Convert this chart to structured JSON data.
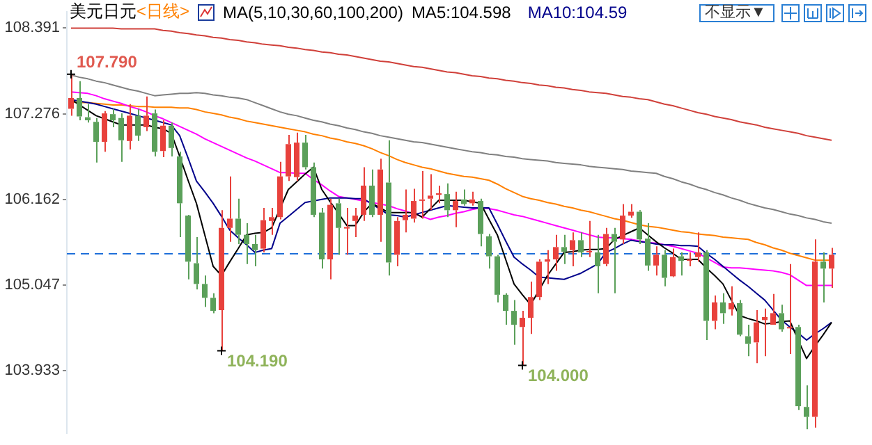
{
  "chart_data": {
    "type": "candlestick",
    "title": "美元日元",
    "subtitle": "<日线>",
    "annotations": [
      "MA(5,10,30,60,100,200)",
      "MA5:104.598",
      "MA10:104.59",
      "不显示▼",
      "107.790",
      "104.190",
      "104.000"
    ],
    "categories": [
      null,
      null,
      null,
      null,
      null,
      null,
      null,
      null,
      null,
      null,
      null,
      null,
      null,
      null,
      null,
      null,
      null,
      null,
      null,
      null,
      null,
      null,
      null,
      null,
      null,
      null,
      null,
      null,
      null,
      null,
      null,
      null,
      null,
      null,
      null,
      null,
      null,
      null,
      null,
      null,
      null,
      null,
      null,
      null,
      null,
      null,
      null,
      null,
      null,
      null,
      null,
      null,
      null,
      null,
      null,
      null,
      null,
      null,
      null,
      null,
      null,
      null,
      null,
      null,
      null,
      null,
      null,
      null,
      null,
      null,
      null,
      null,
      null,
      null,
      null,
      null,
      null,
      null,
      null,
      null,
      null,
      null,
      null,
      null,
      null,
      null,
      null,
      null,
      null,
      null,
      null,
      null
    ],
    "ohlc": [
      [
        107.34,
        107.79,
        107.25,
        107.48
      ],
      [
        107.48,
        107.7,
        107.19,
        107.24
      ],
      [
        107.23,
        107.4,
        107.16,
        107.19
      ],
      [
        107.17,
        107.22,
        106.64,
        106.91
      ],
      [
        106.91,
        107.31,
        106.78,
        107.28
      ],
      [
        107.27,
        107.34,
        107.1,
        107.19
      ],
      [
        107.22,
        107.28,
        106.65,
        106.93
      ],
      [
        106.92,
        107.4,
        106.81,
        107.25
      ],
      [
        107.25,
        107.34,
        106.92,
        106.99
      ],
      [
        107.1,
        107.5,
        107.05,
        107.25
      ],
      [
        107.28,
        107.33,
        106.72,
        106.78
      ],
      [
        106.79,
        107.19,
        106.71,
        107.12
      ],
      [
        107.12,
        107.16,
        106.72,
        106.83
      ],
      [
        106.72,
        106.78,
        105.67,
        106.11
      ],
      [
        105.95,
        105.96,
        105.12,
        105.35
      ],
      [
        105.33,
        105.67,
        104.99,
        105.06
      ],
      [
        105.06,
        105.17,
        104.76,
        104.88
      ],
      [
        104.88,
        104.94,
        104.68,
        104.71
      ],
      [
        104.72,
        106.02,
        104.19,
        105.79
      ],
      [
        105.79,
        106.46,
        105.61,
        105.91
      ],
      [
        105.91,
        106.17,
        105.58,
        105.7
      ],
      [
        105.7,
        105.85,
        105.32,
        105.58
      ],
      [
        105.58,
        105.7,
        105.29,
        105.5
      ],
      [
        105.52,
        106.05,
        105.47,
        105.89
      ],
      [
        105.88,
        106.05,
        105.7,
        105.93
      ],
      [
        105.93,
        106.65,
        105.9,
        106.46
      ],
      [
        106.46,
        107.0,
        106.4,
        106.88
      ],
      [
        106.45,
        107.03,
        106.4,
        106.9
      ],
      [
        106.9,
        107.0,
        106.55,
        106.58
      ],
      [
        106.58,
        106.64,
        105.93,
        105.96
      ],
      [
        105.99,
        106.05,
        105.26,
        105.38
      ],
      [
        105.38,
        106.17,
        105.12,
        106.09
      ],
      [
        106.11,
        106.17,
        105.44,
        105.79
      ],
      [
        105.79,
        106.05,
        105.44,
        105.8
      ],
      [
        105.88,
        106.05,
        105.67,
        105.95
      ],
      [
        105.96,
        106.58,
        105.88,
        106.34
      ],
      [
        106.34,
        106.55,
        105.93,
        105.96
      ],
      [
        105.96,
        106.69,
        105.61,
        106.55
      ],
      [
        106.38,
        106.93,
        105.17,
        105.34
      ],
      [
        105.44,
        105.93,
        105.29,
        105.88
      ],
      [
        105.89,
        106.29,
        105.73,
        105.96
      ],
      [
        105.91,
        106.3,
        105.86,
        106.14
      ],
      [
        106.15,
        106.53,
        105.91,
        106.16
      ],
      [
        106.17,
        106.49,
        106.02,
        106.21
      ],
      [
        106.22,
        106.34,
        106.11,
        106.24
      ],
      [
        106.23,
        106.37,
        105.93,
        106.02
      ],
      [
        106.02,
        106.26,
        105.8,
        106.14
      ],
      [
        106.16,
        106.29,
        106.08,
        106.1
      ],
      [
        106.11,
        106.26,
        106.08,
        106.16
      ],
      [
        106.14,
        106.17,
        105.55,
        105.71
      ],
      [
        105.68,
        105.71,
        105.26,
        105.42
      ],
      [
        105.42,
        105.44,
        104.82,
        104.92
      ],
      [
        104.92,
        104.94,
        104.53,
        104.71
      ],
      [
        104.71,
        104.85,
        104.27,
        104.53
      ],
      [
        104.5,
        104.71,
        104.0,
        104.62
      ],
      [
        104.62,
        105.09,
        104.41,
        104.89
      ],
      [
        104.89,
        105.38,
        104.85,
        105.35
      ],
      [
        105.35,
        105.5,
        105.06,
        105.38
      ],
      [
        105.38,
        105.7,
        105.23,
        105.54
      ],
      [
        105.54,
        105.7,
        105.32,
        105.48
      ],
      [
        105.5,
        105.73,
        105.29,
        105.63
      ],
      [
        105.63,
        105.73,
        105.41,
        105.47
      ],
      [
        105.48,
        105.88,
        105.41,
        105.49
      ],
      [
        105.47,
        105.7,
        104.94,
        105.29
      ],
      [
        105.32,
        105.79,
        105.29,
        105.71
      ],
      [
        105.71,
        105.79,
        104.94,
        105.61
      ],
      [
        105.64,
        106.1,
        105.58,
        105.95
      ],
      [
        105.95,
        106.1,
        105.92,
        106.0
      ],
      [
        106.0,
        106.02,
        105.58,
        105.64
      ],
      [
        105.65,
        105.85,
        105.23,
        105.3
      ],
      [
        105.3,
        105.55,
        105.17,
        105.44
      ],
      [
        105.44,
        105.5,
        105.03,
        105.14
      ],
      [
        105.16,
        105.52,
        105.15,
        105.41
      ],
      [
        105.42,
        105.47,
        105.17,
        105.36
      ],
      [
        105.37,
        105.47,
        105.29,
        105.38
      ],
      [
        105.41,
        105.73,
        105.35,
        105.47
      ],
      [
        105.47,
        105.5,
        104.33,
        104.58
      ],
      [
        104.58,
        104.91,
        104.47,
        104.82
      ],
      [
        104.82,
        104.94,
        104.54,
        104.68
      ],
      [
        104.73,
        105.03,
        104.65,
        104.81
      ],
      [
        104.81,
        104.85,
        104.38,
        104.4
      ],
      [
        104.38,
        104.53,
        104.12,
        104.28
      ],
      [
        104.3,
        104.72,
        104.03,
        104.56
      ],
      [
        104.59,
        104.74,
        104.12,
        104.63
      ],
      [
        104.53,
        104.93,
        104.53,
        104.68
      ],
      [
        104.68,
        104.79,
        104.44,
        104.47
      ],
      [
        104.49,
        105.32,
        104.15,
        104.5
      ],
      [
        104.5,
        104.53,
        103.42,
        103.47
      ],
      [
        103.46,
        103.74,
        103.17,
        103.33
      ],
      [
        103.33,
        105.64,
        103.19,
        105.35
      ],
      [
        105.35,
        105.47,
        104.82,
        105.26
      ],
      [
        105.26,
        105.53,
        105.01,
        105.44
      ]
    ],
    "colors": [
      "#e8413c",
      "#5ba05a",
      "#5ba05a",
      "#5ba05a",
      "#e8413c",
      "#5ba05a",
      "#5ba05a",
      "#e8413c",
      "#5ba05a",
      "#e8413c",
      "#5ba05a",
      "#e8413c",
      "#5ba05a",
      "#5ba05a",
      "#5ba05a",
      "#5ba05a",
      "#5ba05a",
      "#5ba05a",
      "#e8413c",
      "#e8413c",
      "#5ba05a",
      "#5ba05a",
      "#5ba05a",
      "#e8413c",
      "#e8413c",
      "#e8413c",
      "#e8413c",
      "#e8413c",
      "#5ba05a",
      "#5ba05a",
      "#5ba05a",
      "#e8413c",
      "#5ba05a",
      "#e8413c",
      "#e8413c",
      "#e8413c",
      "#5ba05a",
      "#e8413c",
      "#5ba05a",
      "#e8413c",
      "#e8413c",
      "#e8413c",
      "#e8413c",
      "#e8413c",
      "#e8413c",
      "#5ba05a",
      "#e8413c",
      "#5ba05a",
      "#e8413c",
      "#5ba05a",
      "#5ba05a",
      "#5ba05a",
      "#5ba05a",
      "#5ba05a",
      "#e8413c",
      "#e8413c",
      "#e8413c",
      "#e8413c",
      "#e8413c",
      "#5ba05a",
      "#e8413c",
      "#5ba05a",
      "#e8413c",
      "#5ba05a",
      "#e8413c",
      "#5ba05a",
      "#e8413c",
      "#e8413c",
      "#5ba05a",
      "#5ba05a",
      "#e8413c",
      "#5ba05a",
      "#e8413c",
      "#5ba05a",
      "#e8413c",
      "#e8413c",
      "#5ba05a",
      "#e8413c",
      "#5ba05a",
      "#e8413c",
      "#5ba05a",
      "#5ba05a",
      "#e8413c",
      "#e8413c",
      "#e8413c",
      "#5ba05a",
      "#e8413c",
      "#5ba05a",
      "#5ba05a",
      "#e8413c",
      "#5ba05a",
      "#e8413c"
    ],
    "series": [
      {
        "type": "line",
        "color": "#000000",
        "values": [
          107.46,
          107.39,
          107.32,
          107.25,
          107.21,
          107.17,
          107.13,
          107.13,
          107.13,
          107.13,
          107.1,
          107.08,
          107.02,
          106.72,
          106.41,
          106.11,
          105.7,
          105.29,
          105.17,
          105.35,
          105.52,
          105.7,
          105.72,
          105.73,
          105.79,
          106.04,
          106.29,
          106.39,
          106.49,
          106.58,
          106.29,
          106.13,
          105.98,
          105.82,
          105.82,
          105.99,
          106.11,
          106.05,
          105.99,
          105.99,
          105.99,
          105.99,
          105.93,
          106.04,
          106.15,
          106.15,
          106.15,
          106.15,
          106.13,
          106.11,
          105.9,
          105.7,
          105.38,
          105.06,
          104.92,
          104.79,
          104.98,
          105.17,
          105.32,
          105.47,
          105.48,
          105.5,
          105.51,
          105.51,
          105.52,
          105.64,
          105.69,
          105.74,
          105.79,
          105.7,
          105.61,
          105.53,
          105.46,
          105.38,
          105.38,
          105.38,
          105.27,
          105.17,
          105.06,
          104.85,
          104.65,
          104.61,
          104.58,
          104.54,
          104.55,
          104.57,
          104.58,
          104.33,
          104.09,
          104.25,
          104.4,
          104.56
        ]
      },
      {
        "type": "line",
        "color": "#00008b",
        "values": [
          107.46,
          107.44,
          107.42,
          107.4,
          107.37,
          107.34,
          107.31,
          107.28,
          107.25,
          107.22,
          107.19,
          107.16,
          107.13,
          106.99,
          106.7,
          106.4,
          106.26,
          106.11,
          105.94,
          105.76,
          105.66,
          105.57,
          105.47,
          105.5,
          105.52,
          105.85,
          105.94,
          106.03,
          106.12,
          106.14,
          106.16,
          106.18,
          106.18,
          106.18,
          106.17,
          106.17,
          106.1,
          106.03,
          105.96,
          105.95,
          105.93,
          105.96,
          105.99,
          106.02,
          106.05,
          106.08,
          106.07,
          106.06,
          106.05,
          106.05,
          106.05,
          105.84,
          105.62,
          105.41,
          105.32,
          105.24,
          105.15,
          105.14,
          105.13,
          105.12,
          105.16,
          105.2,
          105.26,
          105.32,
          105.47,
          105.52,
          105.58,
          105.63,
          105.61,
          105.6,
          105.58,
          105.57,
          105.57,
          105.56,
          105.56,
          105.55,
          105.46,
          105.38,
          105.29,
          105.2,
          105.11,
          105.03,
          104.94,
          104.85,
          104.72,
          104.59,
          104.5,
          104.42,
          104.33,
          104.41,
          104.48,
          104.56
        ]
      },
      {
        "type": "line",
        "color": "#ff00ff",
        "values": [
          107.56,
          107.55,
          107.54,
          107.51,
          107.47,
          107.44,
          107.41,
          107.37,
          107.34,
          107.3,
          107.25,
          107.21,
          107.16,
          107.11,
          107.06,
          107.01,
          106.95,
          106.9,
          106.85,
          106.8,
          106.75,
          106.7,
          106.66,
          106.61,
          106.56,
          106.51,
          106.51,
          106.5,
          106.5,
          106.42,
          106.35,
          106.27,
          106.2,
          106.18,
          106.16,
          106.14,
          106.12,
          106.1,
          106.08,
          106.04,
          106.01,
          105.97,
          105.94,
          105.9,
          105.93,
          105.95,
          105.98,
          106.0,
          106.03,
          106.05,
          106.04,
          106.02,
          105.99,
          105.96,
          105.94,
          105.91,
          105.88,
          105.85,
          105.82,
          105.79,
          105.76,
          105.73,
          105.7,
          105.67,
          105.66,
          105.66,
          105.65,
          105.64,
          105.62,
          105.6,
          105.59,
          105.57,
          105.55,
          105.52,
          105.49,
          105.46,
          105.4,
          105.34,
          105.28,
          105.27,
          105.27,
          105.26,
          105.25,
          105.24,
          105.23,
          105.21,
          105.18,
          105.11,
          105.04,
          105.04,
          105.04,
          105.04
        ]
      },
      {
        "type": "line",
        "color": "#ff8000",
        "values": [
          107.43,
          107.42,
          107.42,
          107.41,
          107.4,
          107.39,
          107.39,
          107.38,
          107.37,
          107.37,
          107.36,
          107.36,
          107.36,
          107.35,
          107.35,
          107.33,
          107.3,
          107.28,
          107.26,
          107.23,
          107.21,
          107.18,
          107.16,
          107.14,
          107.12,
          107.1,
          107.08,
          107.06,
          107.04,
          107.01,
          106.99,
          106.96,
          106.94,
          106.91,
          106.89,
          106.86,
          106.82,
          106.77,
          106.73,
          106.68,
          106.64,
          106.61,
          106.58,
          106.56,
          106.53,
          106.5,
          106.48,
          106.46,
          106.45,
          106.43,
          106.41,
          106.36,
          106.3,
          106.25,
          106.2,
          106.17,
          106.15,
          106.12,
          106.1,
          106.07,
          106.05,
          106.02,
          106.0,
          105.97,
          105.94,
          105.91,
          105.89,
          105.86,
          105.83,
          105.81,
          105.8,
          105.78,
          105.76,
          105.74,
          105.73,
          105.71,
          105.7,
          105.69,
          105.67,
          105.66,
          105.65,
          105.64,
          105.6,
          105.57,
          105.53,
          105.5,
          105.46,
          105.43,
          105.4,
          105.37,
          105.37,
          105.37
        ]
      },
      {
        "type": "line",
        "color": "#808080",
        "values": [
          107.78,
          107.75,
          107.73,
          107.7,
          107.68,
          107.65,
          107.62,
          107.59,
          107.57,
          107.54,
          107.51,
          107.52,
          107.53,
          107.54,
          107.54,
          107.55,
          107.54,
          107.52,
          107.51,
          107.49,
          107.48,
          107.46,
          107.42,
          107.38,
          107.34,
          107.3,
          107.27,
          107.25,
          107.22,
          107.19,
          107.17,
          107.14,
          107.12,
          107.09,
          107.07,
          107.04,
          107.02,
          106.99,
          106.97,
          106.95,
          106.93,
          106.91,
          106.9,
          106.88,
          106.86,
          106.84,
          106.82,
          106.8,
          106.78,
          106.77,
          106.75,
          106.74,
          106.72,
          106.71,
          106.69,
          106.68,
          106.67,
          106.66,
          106.64,
          106.63,
          106.62,
          106.61,
          106.59,
          106.58,
          106.57,
          106.56,
          106.55,
          106.53,
          106.52,
          106.51,
          106.5,
          106.46,
          106.43,
          106.39,
          106.36,
          106.32,
          106.29,
          106.25,
          106.22,
          106.18,
          106.15,
          106.11,
          106.08,
          106.05,
          106.03,
          106.0,
          105.97,
          105.95,
          105.92,
          105.9,
          105.87,
          105.85
        ]
      },
      {
        "type": "line",
        "color": "#d0403a",
        "values": [
          108.39,
          108.39,
          108.39,
          108.39,
          108.39,
          108.39,
          108.38,
          108.38,
          108.38,
          108.38,
          108.38,
          108.36,
          108.35,
          108.33,
          108.32,
          108.3,
          108.29,
          108.27,
          108.26,
          108.24,
          108.23,
          108.21,
          108.2,
          108.18,
          108.17,
          108.16,
          108.14,
          108.13,
          108.11,
          108.1,
          108.08,
          108.07,
          108.05,
          108.04,
          108.02,
          108.0,
          107.98,
          107.96,
          107.95,
          107.93,
          107.91,
          107.89,
          107.88,
          107.86,
          107.84,
          107.82,
          107.81,
          107.79,
          107.77,
          107.76,
          107.74,
          107.73,
          107.71,
          107.7,
          107.68,
          107.67,
          107.65,
          107.64,
          107.62,
          107.61,
          107.59,
          107.58,
          107.56,
          107.55,
          107.54,
          107.52,
          107.5,
          107.49,
          107.47,
          107.46,
          107.43,
          107.4,
          107.38,
          107.35,
          107.32,
          107.29,
          107.27,
          107.24,
          107.22,
          107.2,
          107.17,
          107.15,
          107.13,
          107.1,
          107.08,
          107.06,
          107.04,
          107.02,
          106.99,
          106.97,
          106.95,
          106.93
        ]
      }
    ],
    "ref_lines": [
      {
        "axis": "y",
        "value": 105.46,
        "color": "#1e6fd9",
        "line_style": "dashed"
      }
    ],
    "ylim": [
      103.12,
      108.6
    ],
    "yticks": [
      108.391,
      107.276,
      106.162,
      105.047,
      103.933
    ],
    "tick_labels": "y",
    "grid": false,
    "legend": false,
    "marker": "none",
    "line_style": "solid"
  }
}
